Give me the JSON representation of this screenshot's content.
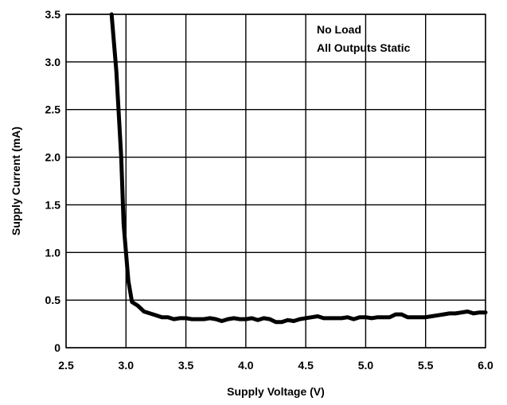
{
  "chart_data": {
    "type": "line",
    "xlabel": "Supply Voltage (V)",
    "ylabel": "Supply Current (mA)",
    "xlim": [
      2.5,
      6.0
    ],
    "ylim": [
      0,
      3.5
    ],
    "x_ticks": [
      2.5,
      3.0,
      3.5,
      4.0,
      4.5,
      5.0,
      5.5,
      6.0
    ],
    "x_tick_labels": [
      "2.5",
      "3.0",
      "3.5",
      "4.0",
      "4.5",
      "5.0",
      "5.5",
      "6.0"
    ],
    "y_ticks": [
      0,
      0.5,
      1.0,
      1.5,
      2.0,
      2.5,
      3.0,
      3.5
    ],
    "y_tick_labels": [
      "0",
      "0.5",
      "1.0",
      "1.5",
      "2.0",
      "2.5",
      "3.0",
      "3.5"
    ],
    "grid": true,
    "annotations": [
      "No Load",
      "All Outputs Static"
    ],
    "series": [
      {
        "x": [
          2.88,
          2.92,
          2.96,
          2.98,
          3.0,
          3.02,
          3.05,
          3.1,
          3.15,
          3.2,
          3.25,
          3.3,
          3.35,
          3.4,
          3.45,
          3.5,
          3.55,
          3.6,
          3.65,
          3.7,
          3.75,
          3.8,
          3.85,
          3.9,
          3.95,
          4.0,
          4.05,
          4.1,
          4.15,
          4.2,
          4.25,
          4.3,
          4.35,
          4.4,
          4.45,
          4.5,
          4.55,
          4.6,
          4.65,
          4.7,
          4.75,
          4.8,
          4.85,
          4.9,
          4.95,
          5.0,
          5.05,
          5.1,
          5.15,
          5.2,
          5.25,
          5.3,
          5.35,
          5.4,
          5.45,
          5.5,
          5.55,
          5.6,
          5.65,
          5.7,
          5.75,
          5.8,
          5.85,
          5.9,
          5.95,
          6.0
        ],
        "values": [
          3.5,
          2.9,
          2.0,
          1.3,
          1.0,
          0.7,
          0.48,
          0.44,
          0.38,
          0.36,
          0.34,
          0.32,
          0.32,
          0.3,
          0.31,
          0.31,
          0.3,
          0.3,
          0.3,
          0.31,
          0.3,
          0.28,
          0.3,
          0.31,
          0.3,
          0.3,
          0.31,
          0.29,
          0.31,
          0.3,
          0.27,
          0.27,
          0.29,
          0.28,
          0.3,
          0.31,
          0.32,
          0.33,
          0.31,
          0.31,
          0.31,
          0.31,
          0.32,
          0.3,
          0.32,
          0.32,
          0.31,
          0.32,
          0.32,
          0.32,
          0.35,
          0.35,
          0.32,
          0.32,
          0.32,
          0.32,
          0.33,
          0.34,
          0.35,
          0.36,
          0.36,
          0.37,
          0.38,
          0.36,
          0.37,
          0.37
        ]
      }
    ]
  }
}
